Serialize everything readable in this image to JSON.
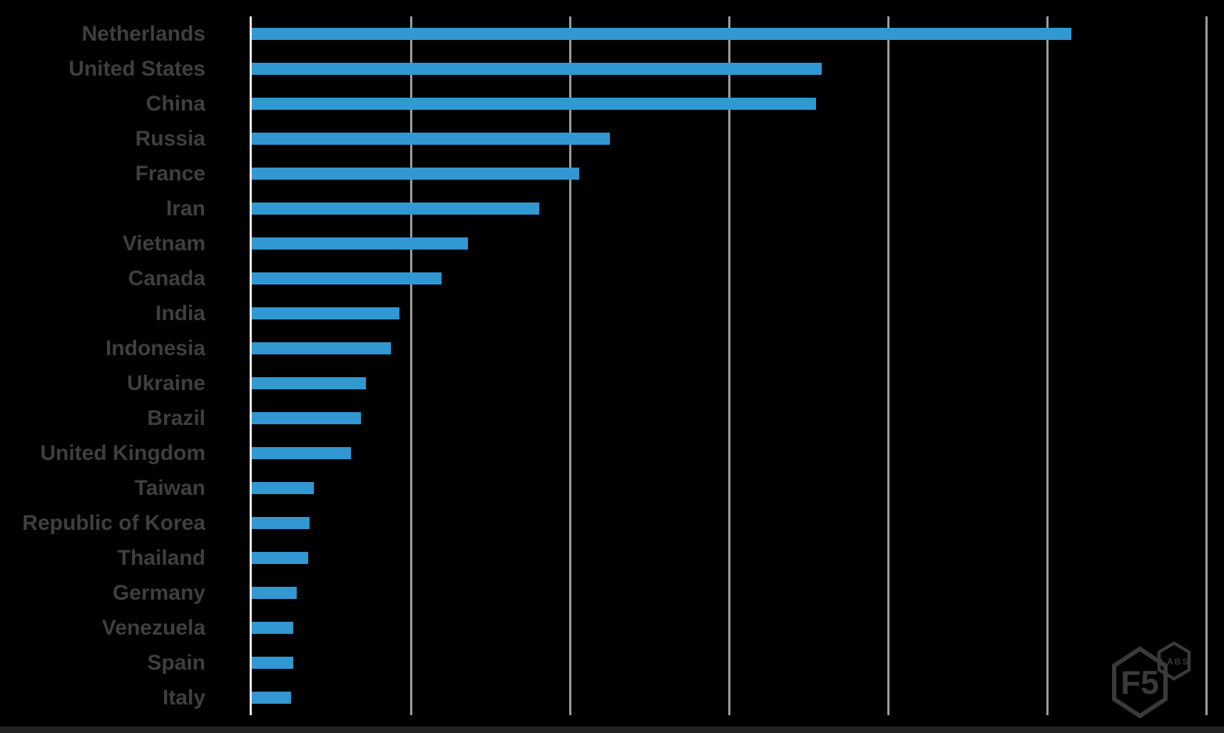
{
  "canvas": {
    "background": "#000000"
  },
  "chart_data": {
    "type": "bar",
    "orientation": "horizontal",
    "title": "",
    "xlabel": "",
    "ylabel": "",
    "categories": [
      "Netherlands",
      "United States",
      "China",
      "Russia",
      "France",
      "Iran",
      "Vietnam",
      "Canada",
      "India",
      "Indonesia",
      "Ukraine",
      "Brazil",
      "United Kingdom",
      "Taiwan",
      "Republic of Korea",
      "Thailand",
      "Germany",
      "Venezuela",
      "Spain",
      "Italy"
    ],
    "values": [
      5.152,
      3.583,
      3.547,
      2.251,
      2.058,
      1.807,
      1.359,
      1.193,
      0.928,
      0.874,
      0.717,
      0.686,
      0.623,
      0.39,
      0.363,
      0.354,
      0.283,
      0.26,
      0.26,
      0.247
    ],
    "units": "gridline divisions (axis has no visible numeric tick labels)",
    "xlim": [
      0,
      6
    ],
    "grid": true,
    "legend": false,
    "bar_color": "#3198d1",
    "category_label_color": "#3f3f3f",
    "gridline_color": "#9f9f9f",
    "axis_line_color": "#efefef"
  },
  "logo": {
    "text_main": "F5",
    "text_sub": "LABS",
    "color": "#3a3a3a"
  }
}
